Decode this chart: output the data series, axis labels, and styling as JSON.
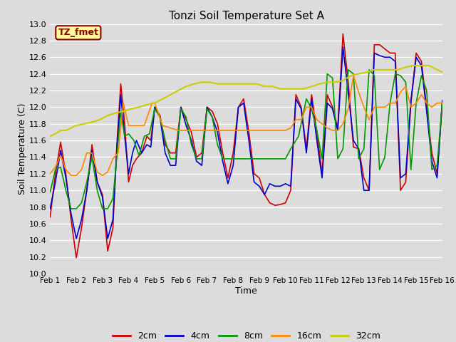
{
  "title": "Tonzi Soil Temperature Set A",
  "xlabel": "Time",
  "ylabel": "Soil Temperature (C)",
  "ylim": [
    10.0,
    13.0
  ],
  "xtick_labels": [
    "Feb 1",
    "Feb 2",
    "Feb 3",
    "Feb 4",
    "Feb 5",
    "Feb 6",
    "Feb 7",
    "Feb 8",
    "Feb 9",
    "Feb 10",
    "Feb 11",
    "Feb 12",
    "Feb 13",
    "Feb 14",
    "Feb 15",
    "Feb 16"
  ],
  "annotation_text": "TZ_fmet",
  "annotation_bbox_facecolor": "#ffff99",
  "annotation_bbox_edgecolor": "#8b0000",
  "annotation_text_color": "#8b0000",
  "background_color": "#dcdcdc",
  "grid_color": "#ffffff",
  "legend_entries": [
    "2cm",
    "4cm",
    "8cm",
    "16cm",
    "32cm"
  ],
  "line_colors": [
    "#cc0000",
    "#0000cc",
    "#009900",
    "#ff8800",
    "#cccc00"
  ],
  "x_2cm": [
    1.0,
    1.2,
    1.4,
    1.6,
    1.8,
    2.0,
    2.2,
    2.4,
    2.6,
    2.8,
    3.0,
    3.2,
    3.4,
    3.55,
    3.7,
    3.85,
    4.0,
    4.15,
    4.3,
    4.5,
    4.7,
    4.85,
    5.0,
    5.2,
    5.4,
    5.6,
    5.8,
    6.0,
    6.2,
    6.4,
    6.6,
    6.8,
    7.0,
    7.2,
    7.4,
    7.6,
    7.8,
    8.0,
    8.2,
    8.4,
    8.6,
    8.8,
    9.0,
    9.2,
    9.4,
    9.6,
    9.8,
    10.0,
    10.2,
    10.4,
    10.6,
    10.8,
    11.0,
    11.2,
    11.4,
    11.6,
    11.8,
    12.0,
    12.2,
    12.4,
    12.6,
    12.8,
    13.0,
    13.2,
    13.4,
    13.6,
    13.8,
    14.0,
    14.2,
    14.4,
    14.6,
    14.8,
    15.0,
    15.2,
    15.4,
    15.6,
    15.8,
    16.0
  ],
  "y_2cm": [
    10.68,
    11.2,
    11.58,
    11.2,
    10.65,
    10.19,
    10.55,
    11.0,
    11.55,
    11.1,
    10.95,
    10.27,
    10.55,
    11.55,
    12.28,
    11.8,
    11.1,
    11.3,
    11.38,
    11.45,
    11.65,
    11.6,
    12.0,
    11.9,
    11.55,
    11.45,
    11.45,
    12.0,
    11.85,
    11.7,
    11.4,
    11.45,
    12.0,
    11.95,
    11.8,
    11.45,
    11.15,
    11.45,
    12.0,
    12.1,
    11.7,
    11.2,
    11.15,
    10.95,
    10.85,
    10.82,
    10.83,
    10.85,
    11.0,
    12.15,
    12.0,
    11.5,
    12.15,
    11.7,
    11.2,
    12.15,
    12.0,
    11.75,
    12.88,
    12.3,
    11.52,
    11.5,
    11.15,
    11.0,
    12.75,
    12.75,
    12.7,
    12.65,
    12.65,
    11.0,
    11.1,
    12.05,
    12.65,
    12.55,
    12.0,
    11.45,
    11.2,
    12.05
  ],
  "x_4cm": [
    1.0,
    1.2,
    1.4,
    1.6,
    1.8,
    2.0,
    2.2,
    2.4,
    2.6,
    2.8,
    3.0,
    3.2,
    3.4,
    3.55,
    3.7,
    3.85,
    4.0,
    4.15,
    4.3,
    4.5,
    4.7,
    4.85,
    5.0,
    5.2,
    5.4,
    5.6,
    5.8,
    6.0,
    6.2,
    6.4,
    6.6,
    6.8,
    7.0,
    7.2,
    7.4,
    7.6,
    7.8,
    8.0,
    8.2,
    8.4,
    8.6,
    8.8,
    9.0,
    9.2,
    9.4,
    9.6,
    9.8,
    10.0,
    10.2,
    10.4,
    10.6,
    10.8,
    11.0,
    11.2,
    11.4,
    11.6,
    11.8,
    12.0,
    12.2,
    12.4,
    12.6,
    12.8,
    13.0,
    13.2,
    13.4,
    13.6,
    13.8,
    14.0,
    14.2,
    14.4,
    14.6,
    14.8,
    15.0,
    15.2,
    15.4,
    15.6,
    15.8,
    16.0
  ],
  "y_4cm": [
    10.78,
    11.1,
    11.48,
    11.15,
    10.72,
    10.42,
    10.65,
    11.0,
    11.48,
    11.1,
    10.92,
    10.42,
    10.65,
    11.48,
    12.15,
    11.65,
    11.2,
    11.45,
    11.6,
    11.45,
    11.55,
    11.52,
    12.0,
    11.88,
    11.45,
    11.3,
    11.3,
    12.0,
    11.78,
    11.6,
    11.35,
    11.3,
    12.0,
    11.88,
    11.7,
    11.35,
    11.08,
    11.3,
    12.0,
    12.05,
    11.6,
    11.1,
    11.05,
    10.95,
    11.08,
    11.05,
    11.05,
    11.08,
    11.05,
    12.1,
    11.98,
    11.45,
    12.1,
    11.6,
    11.15,
    12.05,
    11.98,
    11.72,
    12.72,
    12.18,
    11.6,
    11.5,
    11.0,
    11.0,
    12.65,
    12.62,
    12.6,
    12.6,
    12.55,
    11.15,
    11.2,
    12.08,
    12.6,
    12.5,
    11.95,
    11.35,
    11.15,
    12.08
  ],
  "x_8cm": [
    1.0,
    1.2,
    1.4,
    1.6,
    1.8,
    2.0,
    2.2,
    2.4,
    2.6,
    2.8,
    3.0,
    3.2,
    3.4,
    3.55,
    3.7,
    3.85,
    4.0,
    4.2,
    4.4,
    4.6,
    4.8,
    5.0,
    5.2,
    5.4,
    5.6,
    5.8,
    6.0,
    6.2,
    6.4,
    6.6,
    6.8,
    7.0,
    7.2,
    7.4,
    7.6,
    7.8,
    8.0,
    8.2,
    8.5,
    8.8,
    9.0,
    9.3,
    9.6,
    9.8,
    10.0,
    10.2,
    10.5,
    10.8,
    11.0,
    11.2,
    11.4,
    11.6,
    11.8,
    12.0,
    12.2,
    12.4,
    12.6,
    12.8,
    13.0,
    13.2,
    13.4,
    13.6,
    13.8,
    14.0,
    14.2,
    14.4,
    14.6,
    14.8,
    15.0,
    15.2,
    15.4,
    15.6,
    15.8,
    16.0
  ],
  "y_8cm": [
    10.98,
    11.25,
    11.28,
    11.0,
    10.78,
    10.78,
    10.85,
    11.1,
    11.4,
    11.0,
    10.78,
    10.78,
    10.9,
    11.4,
    11.95,
    11.65,
    11.68,
    11.6,
    11.42,
    11.65,
    11.68,
    11.98,
    11.88,
    11.6,
    11.38,
    11.38,
    11.98,
    11.88,
    11.55,
    11.38,
    11.38,
    11.98,
    11.88,
    11.55,
    11.38,
    11.38,
    11.38,
    11.38,
    11.38,
    11.38,
    11.38,
    11.38,
    11.38,
    11.38,
    11.38,
    11.5,
    11.65,
    12.1,
    11.98,
    11.72,
    11.38,
    12.4,
    12.35,
    11.38,
    11.5,
    12.45,
    12.4,
    11.38,
    11.5,
    12.45,
    12.38,
    11.25,
    11.4,
    12.05,
    12.4,
    12.38,
    12.3,
    11.25,
    12.05,
    12.38,
    12.2,
    11.25,
    11.3,
    12.05
  ],
  "x_16cm": [
    1.0,
    1.2,
    1.4,
    1.6,
    1.8,
    2.0,
    2.2,
    2.4,
    2.6,
    2.8,
    3.0,
    3.2,
    3.4,
    3.6,
    3.8,
    4.0,
    4.3,
    4.6,
    4.9,
    5.0,
    5.3,
    5.6,
    5.9,
    6.0,
    6.3,
    6.6,
    6.9,
    7.0,
    7.3,
    7.6,
    7.9,
    8.0,
    8.3,
    8.6,
    8.9,
    9.0,
    9.3,
    9.6,
    9.9,
    10.0,
    10.2,
    10.4,
    10.6,
    10.8,
    11.0,
    11.2,
    11.4,
    11.6,
    11.8,
    12.0,
    12.2,
    12.4,
    12.6,
    12.8,
    13.0,
    13.2,
    13.4,
    13.6,
    13.8,
    14.0,
    14.2,
    14.4,
    14.6,
    14.8,
    15.0,
    15.2,
    15.4,
    15.6,
    15.8,
    16.0
  ],
  "y_16cm": [
    11.2,
    11.28,
    11.42,
    11.25,
    11.18,
    11.18,
    11.25,
    11.45,
    11.45,
    11.22,
    11.18,
    11.22,
    11.38,
    11.45,
    12.05,
    11.78,
    11.78,
    11.78,
    12.05,
    12.05,
    11.78,
    11.75,
    11.72,
    11.72,
    11.72,
    11.72,
    11.72,
    11.72,
    11.72,
    11.72,
    11.72,
    11.72,
    11.72,
    11.72,
    11.72,
    11.72,
    11.72,
    11.72,
    11.72,
    11.72,
    11.75,
    11.85,
    11.85,
    12.0,
    12.0,
    11.85,
    11.8,
    11.75,
    11.72,
    11.72,
    11.8,
    11.98,
    12.38,
    12.18,
    12.0,
    11.85,
    12.0,
    12.0,
    12.0,
    12.05,
    12.05,
    12.18,
    12.25,
    12.0,
    12.05,
    12.15,
    12.05,
    12.0,
    12.05,
    12.05
  ],
  "x_32cm": [
    1.0,
    1.2,
    1.4,
    1.6,
    1.8,
    2.0,
    2.3,
    2.6,
    2.9,
    3.2,
    3.5,
    3.8,
    4.1,
    4.4,
    4.7,
    5.0,
    5.3,
    5.6,
    5.9,
    6.2,
    6.5,
    6.8,
    7.1,
    7.4,
    7.7,
    8.0,
    8.3,
    8.6,
    8.9,
    9.2,
    9.5,
    9.8,
    10.1,
    10.4,
    10.7,
    11.0,
    11.3,
    11.6,
    11.9,
    12.2,
    12.5,
    12.8,
    13.1,
    13.4,
    13.7,
    14.0,
    14.3,
    14.6,
    14.9,
    15.2,
    15.5,
    15.8,
    16.0
  ],
  "y_32cm": [
    11.65,
    11.68,
    11.72,
    11.72,
    11.75,
    11.78,
    11.8,
    11.82,
    11.85,
    11.9,
    11.93,
    11.95,
    11.98,
    12.0,
    12.03,
    12.05,
    12.1,
    12.15,
    12.2,
    12.25,
    12.28,
    12.3,
    12.3,
    12.28,
    12.28,
    12.28,
    12.28,
    12.28,
    12.28,
    12.25,
    12.25,
    12.22,
    12.22,
    12.22,
    12.22,
    12.25,
    12.28,
    12.3,
    12.3,
    12.32,
    12.38,
    12.4,
    12.42,
    12.45,
    12.45,
    12.45,
    12.45,
    12.48,
    12.5,
    12.5,
    12.5,
    12.45,
    12.42
  ]
}
